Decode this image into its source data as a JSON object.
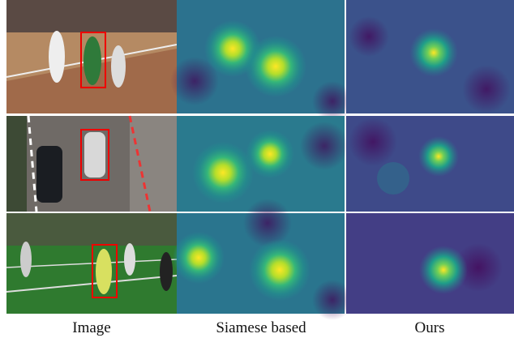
{
  "columns": [
    "Image",
    "Siamese based",
    "Ours"
  ]
}
